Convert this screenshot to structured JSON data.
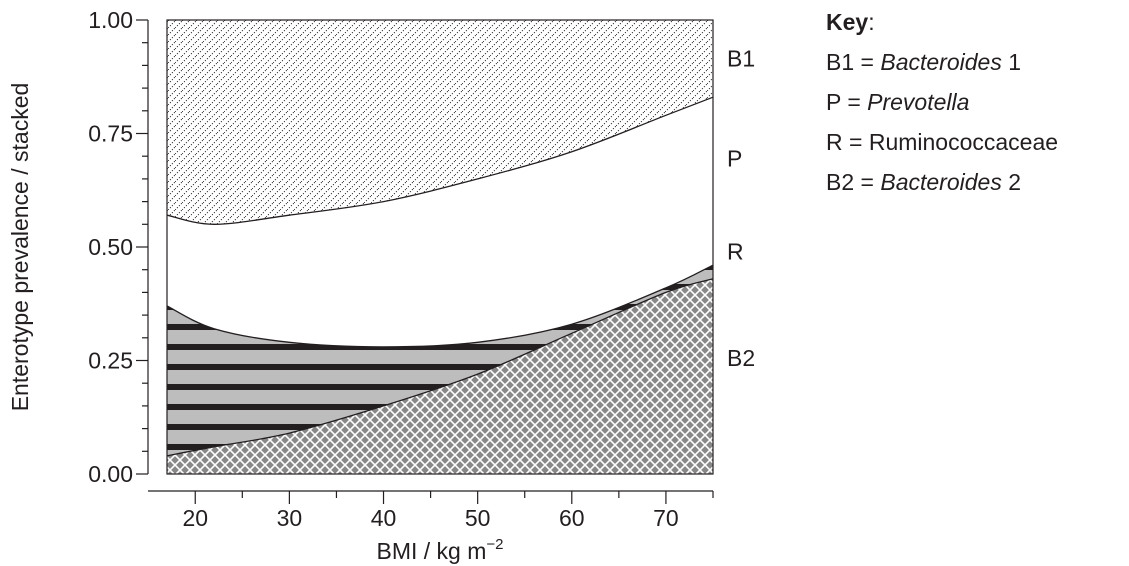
{
  "chart_data": {
    "type": "area",
    "stacked": true,
    "xlabel": "BMI / kg m",
    "xlabel_superscript": "−2",
    "ylabel": "Enterotype prevalence / stacked",
    "xlim": [
      17,
      75
    ],
    "ylim": [
      0,
      1
    ],
    "x_ticks": [
      "20",
      "30",
      "40",
      "50",
      "60",
      "70"
    ],
    "y_ticks": [
      "0.00",
      "0.25",
      "0.50",
      "0.75",
      "1.00"
    ],
    "x": [
      17,
      22,
      30,
      40,
      50,
      60,
      70,
      75
    ],
    "boundaries": [
      {
        "name": "B2 top",
        "values": [
          0.04,
          0.06,
          0.09,
          0.15,
          0.22,
          0.31,
          0.4,
          0.43
        ]
      },
      {
        "name": "R top",
        "values": [
          0.37,
          0.32,
          0.29,
          0.28,
          0.29,
          0.33,
          0.41,
          0.46
        ]
      },
      {
        "name": "P top",
        "values": [
          0.57,
          0.55,
          0.57,
          0.6,
          0.65,
          0.71,
          0.79,
          0.83
        ]
      }
    ],
    "bands": [
      {
        "id": "B2",
        "pattern": "crosshatch",
        "color": "#888888"
      },
      {
        "id": "R",
        "pattern": "horizontal-stripes",
        "color": "#bdbdbd"
      },
      {
        "id": "P",
        "pattern": "none",
        "color": "#ffffff"
      },
      {
        "id": "B1",
        "pattern": "dotted-diagonal",
        "color": "#ffffff"
      }
    ],
    "band_labels": [
      "B1",
      "P",
      "R",
      "B2"
    ],
    "legend_placement": "right"
  },
  "key": {
    "title": "Key",
    "colon": ":",
    "rows": [
      {
        "code": "B1 = ",
        "name": "Bacteroides",
        "suffix": " 1",
        "italic": true
      },
      {
        "code": "P = ",
        "name": "Prevotella",
        "suffix": "",
        "italic": true
      },
      {
        "code": "R = ",
        "name": "Ruminococcaceae",
        "suffix": "",
        "italic": false
      },
      {
        "code": "B2 = ",
        "name": "Bacteroides",
        "suffix": " 2",
        "italic": true
      }
    ]
  }
}
